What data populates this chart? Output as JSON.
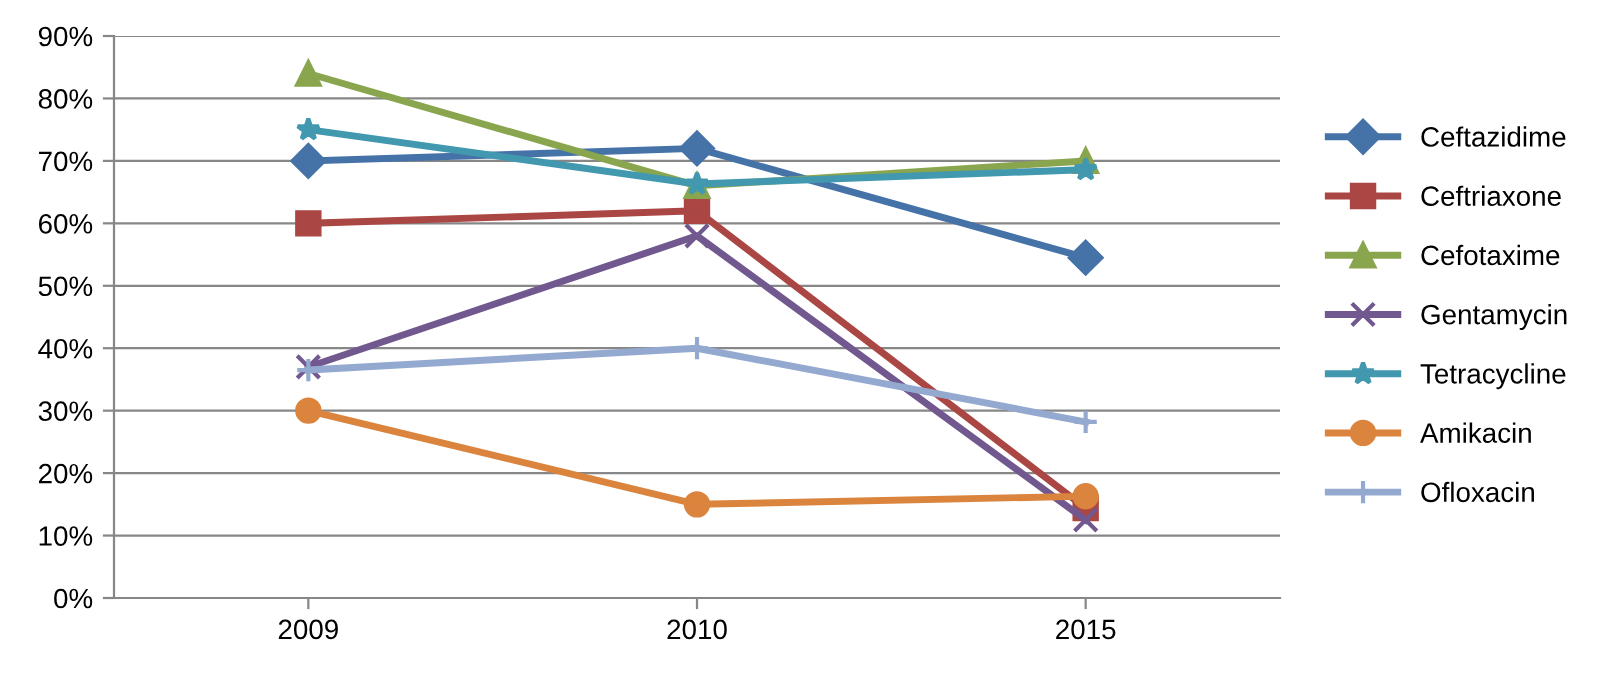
{
  "chart_data": {
    "type": "line",
    "categories": [
      "2009",
      "2010",
      "2015"
    ],
    "ylim": [
      0,
      90
    ],
    "yticks": [
      {
        "value": 0,
        "label": "0%"
      },
      {
        "value": 10,
        "label": "10%"
      },
      {
        "value": 20,
        "label": "20%"
      },
      {
        "value": 30,
        "label": "30%"
      },
      {
        "value": 40,
        "label": "40%"
      },
      {
        "value": 50,
        "label": "50%"
      },
      {
        "value": 60,
        "label": "60%"
      },
      {
        "value": 70,
        "label": "70%"
      },
      {
        "value": 80,
        "label": "80%"
      },
      {
        "value": 90,
        "label": "90%"
      }
    ],
    "grid": "y",
    "legend": "right",
    "line_style": "solid",
    "series": [
      {
        "name": "Ceftazidime",
        "color": "#4572a7",
        "marker": "diamond",
        "values": [
          70,
          72,
          54.5
        ]
      },
      {
        "name": "Ceftriaxone",
        "color": "#aa4643",
        "marker": "square",
        "values": [
          60,
          62,
          14.4
        ]
      },
      {
        "name": "Cefotaxime",
        "color": "#89a54e",
        "marker": "triangle",
        "values": [
          84,
          66,
          70
        ]
      },
      {
        "name": "Gentamycin",
        "color": "#71588f",
        "marker": "cross",
        "values": [
          37,
          58,
          12.5
        ]
      },
      {
        "name": "Tetracycline",
        "color": "#4198af",
        "marker": "star",
        "values": [
          75,
          66.3,
          68.6
        ]
      },
      {
        "name": "Amikacin",
        "color": "#db843d",
        "marker": "circle",
        "values": [
          30,
          15,
          16.3
        ]
      },
      {
        "name": "Ofloxacin",
        "color": "#93a9cf",
        "marker": "plus",
        "values": [
          36.5,
          40,
          28.2
        ]
      }
    ]
  }
}
